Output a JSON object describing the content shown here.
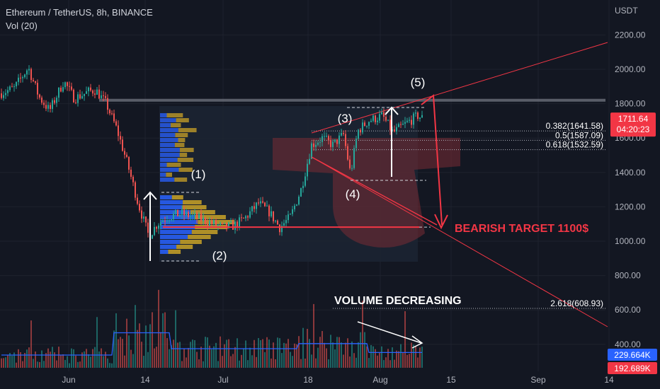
{
  "header": {
    "symbol": "Ethereum / TetherUS, 8h, BINANCE",
    "indicator": "Vol (20)"
  },
  "currency": "USDT",
  "chart_data": {
    "type": "candlestick",
    "y_ticks": [
      2200,
      2000,
      1800,
      1600,
      1400,
      1200,
      1000,
      800,
      600,
      400
    ],
    "y_tick_labels": [
      "2200.00",
      "2000.00",
      "1800.00",
      "1600.00",
      "1400.00",
      "1200.00",
      "1000.00",
      "800.00",
      "600.00",
      "400.00"
    ],
    "x_ticks": [
      "Jun",
      "14",
      "Jul",
      "18",
      "Aug",
      "15",
      "Sep",
      "14"
    ],
    "ylim": [
      200,
      2420
    ],
    "current_price": {
      "value": 1711.64,
      "label": "1711.64",
      "countdown": "04:20:23",
      "color": "#f23645"
    },
    "volume_badges": [
      {
        "label": "229.664K",
        "color": "#2962ff"
      },
      {
        "label": "192.689K",
        "color": "#f23645"
      }
    ],
    "fib_levels": [
      {
        "label": "0.382(1641.58)",
        "value": 1641.58
      },
      {
        "label": "0.5(1587.09)",
        "value": 1587.09
      },
      {
        "label": "0.618(1532.59)",
        "value": 1532.59
      },
      {
        "label": "2.618(608.93)",
        "value": 608.93
      }
    ],
    "wave_labels": [
      {
        "label": "(1)",
        "price": 1360
      },
      {
        "label": "(2)",
        "price": 1000
      },
      {
        "label": "(3)",
        "price": 1690
      },
      {
        "label": "(4)",
        "price": 1315
      },
      {
        "label": "(5)",
        "price": 1860
      }
    ],
    "resistance_price": 1820,
    "target_price": 1090,
    "annotations": {
      "bearish_target": "BEARISH TARGET 1100$",
      "volume_note": "VOLUME DECREASING"
    },
    "colors": {
      "up": "#26a69a",
      "down": "#ef5350",
      "target": "#f23645",
      "volume_ma": "#2962ff",
      "profile_blue": "#2962ff",
      "profile_gold": "#c9a227",
      "box": "#1c2433"
    }
  }
}
